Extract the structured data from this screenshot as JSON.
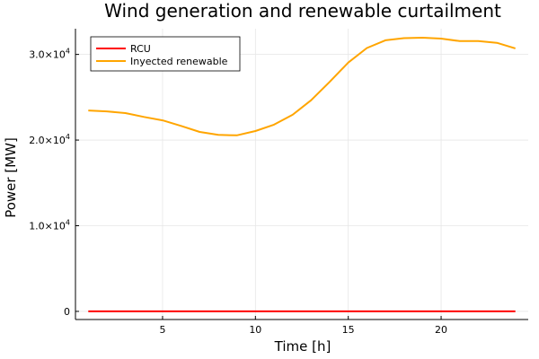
{
  "chart_data": {
    "type": "line",
    "title": "Wind generation and renewable curtailment",
    "xlabel": "Time [h]",
    "ylabel": "Power [MW]",
    "xlim": [
      0.31,
      24.69
    ],
    "ylim": [
      -950,
      33000
    ],
    "xticks": [
      5,
      10,
      15,
      20
    ],
    "yticks": [
      {
        "value": 0,
        "label": "0"
      },
      {
        "value": 10000,
        "label": "1.0×10",
        "exp": "4"
      },
      {
        "value": 20000,
        "label": "2.0×10",
        "exp": "4"
      },
      {
        "value": 30000,
        "label": "3.0×10",
        "exp": "4"
      }
    ],
    "grid": true,
    "legend_position": "top-left",
    "x": [
      1,
      2,
      3,
      4,
      5,
      6,
      7,
      8,
      9,
      10,
      11,
      12,
      13,
      14,
      15,
      16,
      17,
      18,
      19,
      20,
      21,
      22,
      23,
      24
    ],
    "series": [
      {
        "name": "RCU",
        "color": "#ff0000",
        "values": [
          0,
          0,
          0,
          0,
          0,
          0,
          0,
          0,
          0,
          0,
          0,
          0,
          0,
          0,
          0,
          0,
          0,
          0,
          0,
          0,
          0,
          0,
          0,
          0
        ]
      },
      {
        "name": "Inyected renewable",
        "color": "#ffa500",
        "values": [
          23450,
          23350,
          23150,
          22700,
          22300,
          21650,
          20950,
          20600,
          20550,
          21050,
          21800,
          22950,
          24650,
          26800,
          29050,
          30750,
          31650,
          31900,
          31950,
          31850,
          31550,
          31550,
          31350,
          30700
        ]
      }
    ]
  }
}
